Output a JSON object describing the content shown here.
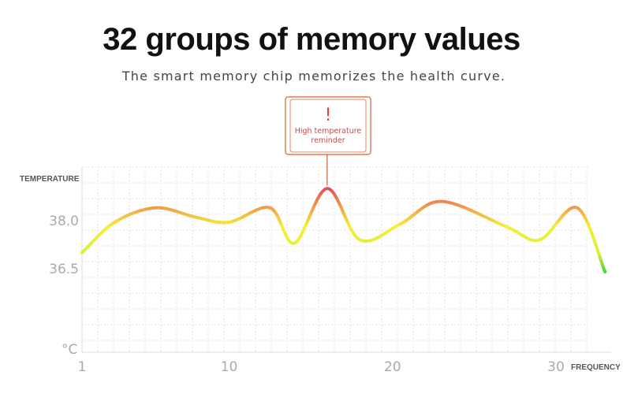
{
  "header": {
    "title": "32 groups of memory values",
    "subtitle": "The smart memory chip memorizes the health curve."
  },
  "callout": {
    "mark": "!",
    "line1": "High temperature",
    "line2": "reminder",
    "at_x": 16
  },
  "chart_data": {
    "type": "line",
    "title": "32 groups of memory values",
    "subtitle": "The smart memory chip memorizes the health curve.",
    "ylabel": "TEMPERATURE",
    "xlabel": "FREQUENCY",
    "y_unit_label": "°C",
    "x_ticks": [
      1,
      10,
      20,
      30
    ],
    "y_ticks": [
      38.0,
      36.5
    ],
    "y_tick_labels": [
      "38.0",
      "36.5"
    ],
    "grid": true,
    "color_scale": {
      "low": "#4cd137",
      "mid": "#f5ef3a",
      "high": "#e8505b"
    },
    "series": [
      {
        "values": [
          {
            "x": 1,
            "y": 37.0
          },
          {
            "x": 3,
            "y": 37.95
          },
          {
            "x": 5.5,
            "y": 38.4
          },
          {
            "x": 8,
            "y": 38.1
          },
          {
            "x": 10,
            "y": 37.95
          },
          {
            "x": 12.5,
            "y": 38.4
          },
          {
            "x": 14,
            "y": 37.3
          },
          {
            "x": 16,
            "y": 39.0
          },
          {
            "x": 18,
            "y": 37.4
          },
          {
            "x": 20.5,
            "y": 37.9
          },
          {
            "x": 23,
            "y": 38.6
          },
          {
            "x": 27,
            "y": 37.8
          },
          {
            "x": 29,
            "y": 37.4
          },
          {
            "x": 31.3,
            "y": 38.4
          },
          {
            "x": 33,
            "y": 36.4
          }
        ]
      }
    ]
  }
}
